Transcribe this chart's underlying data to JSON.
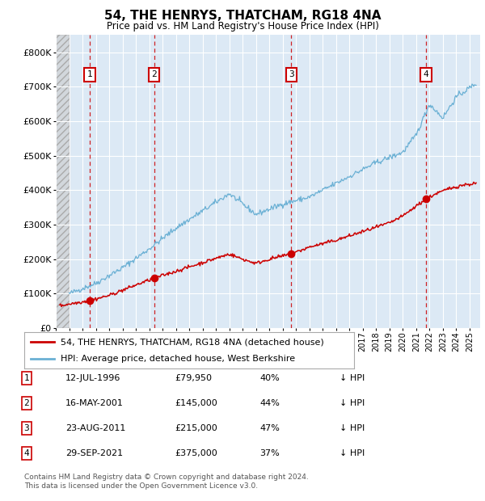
{
  "title": "54, THE HENRYS, THATCHAM, RG18 4NA",
  "subtitle": "Price paid vs. HM Land Registry's House Price Index (HPI)",
  "legend_entry1": "54, THE HENRYS, THATCHAM, RG18 4NA (detached house)",
  "legend_entry2": "HPI: Average price, detached house, West Berkshire",
  "footer1": "Contains HM Land Registry data © Crown copyright and database right 2024.",
  "footer2": "This data is licensed under the Open Government Licence v3.0.",
  "transactions": [
    {
      "num": 1,
      "date": "12-JUL-1996",
      "year": 1996.54,
      "price": 79950,
      "pct": "40%",
      "dir": "↓"
    },
    {
      "num": 2,
      "date": "16-MAY-2001",
      "year": 2001.37,
      "price": 145000,
      "pct": "44%",
      "dir": "↓"
    },
    {
      "num": 3,
      "date": "23-AUG-2011",
      "year": 2011.64,
      "price": 215000,
      "pct": "47%",
      "dir": "↓"
    },
    {
      "num": 4,
      "date": "29-SEP-2021",
      "year": 2021.74,
      "price": 375000,
      "pct": "37%",
      "dir": "↓"
    }
  ],
  "hpi_color": "#6ab0d4",
  "sale_color": "#cc0000",
  "dashed_color": "#cc0000",
  "background_plot": "#dce9f5",
  "grid_color": "#ffffff",
  "ylim": [
    0,
    850000
  ],
  "xlim_start": 1994.0,
  "xlim_end": 2025.8,
  "hpi_data_start_year": 1995.0,
  "yticks": [
    0,
    100000,
    200000,
    300000,
    400000,
    500000,
    600000,
    700000,
    800000
  ],
  "ytick_labels": [
    "£0",
    "£100K",
    "£200K",
    "£300K",
    "£400K",
    "£500K",
    "£600K",
    "£700K",
    "£800K"
  ]
}
